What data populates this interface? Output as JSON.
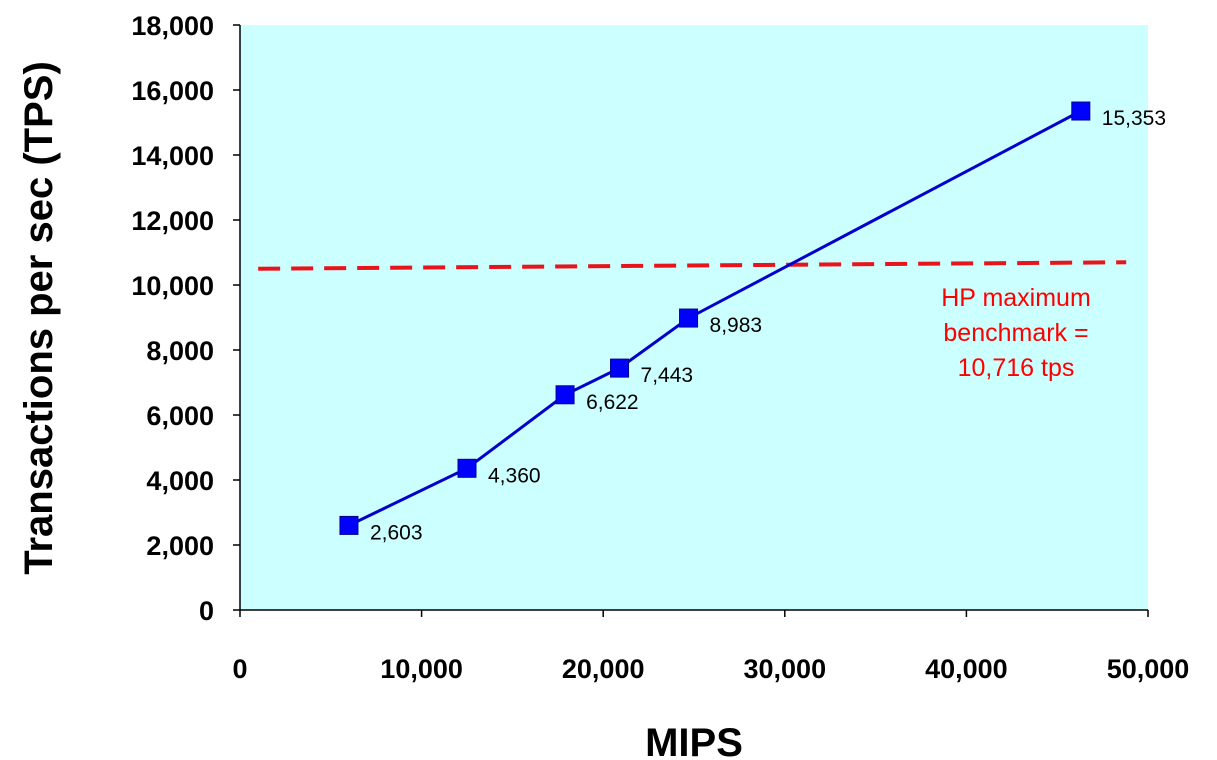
{
  "chart_data": {
    "type": "line",
    "xlabel": "MIPS",
    "ylabel": "Transactions per sec (TPS)",
    "xlim": [
      0,
      50000
    ],
    "ylim": [
      0,
      18000
    ],
    "x_ticks": [
      "0",
      "10,000",
      "20,000",
      "30,000",
      "40,000",
      "50,000"
    ],
    "y_ticks": [
      "0",
      "2,000",
      "4,000",
      "6,000",
      "8,000",
      "10,000",
      "12,000",
      "14,000",
      "16,000",
      "18,000"
    ],
    "grid": false,
    "series": [
      {
        "x": [
          6000,
          12500,
          17900,
          20900,
          24700,
          46300
        ],
        "y": [
          2603,
          4360,
          6622,
          7443,
          8983,
          15353
        ],
        "labels": [
          "2,603",
          "4,360",
          "6,622",
          "7,443",
          "8,983",
          "15,353"
        ]
      }
    ],
    "reference_line": {
      "x_range": [
        1000,
        48800
      ],
      "y_range": [
        10500,
        10700
      ],
      "label_lines": [
        "HP maximum",
        "benchmark =",
        "10,716 tps"
      ]
    },
    "colors": {
      "plot_background": "#ccffff",
      "series": "#0000ff",
      "series_line": "#0000cc",
      "reference": "#ff0000",
      "reference_line": "#e8141c"
    }
  }
}
